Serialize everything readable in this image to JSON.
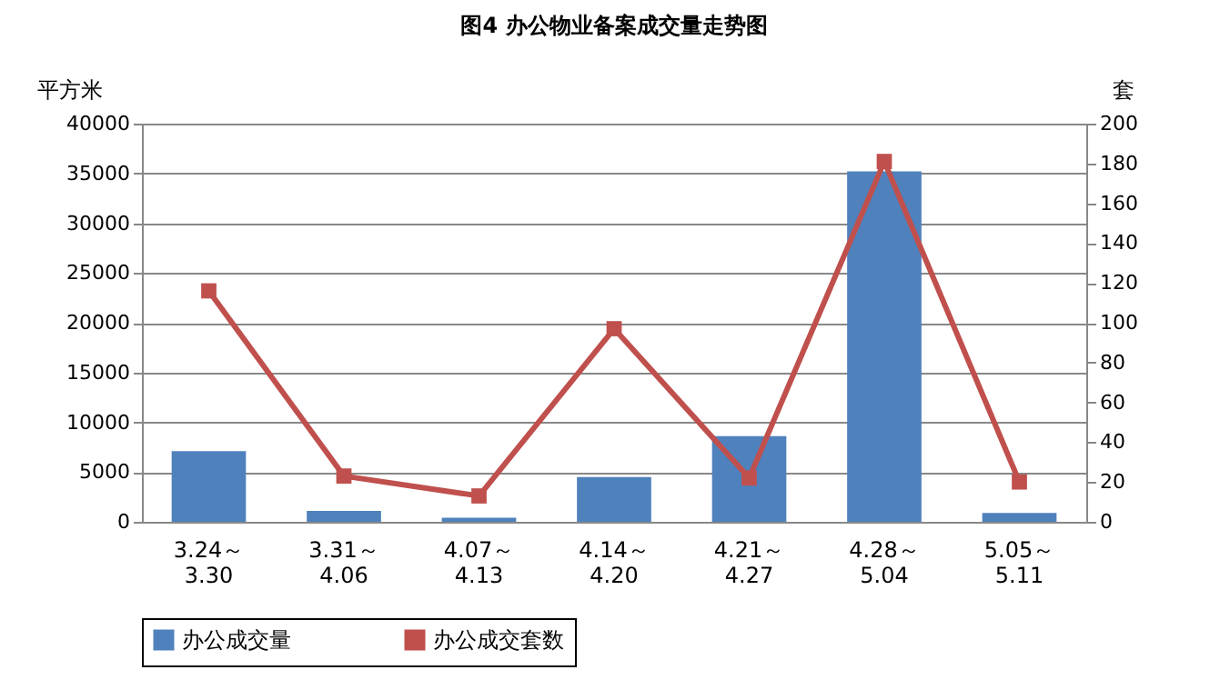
{
  "chart_data": {
    "type": "bar",
    "title": "图4   办公物业备案成交量走势图",
    "categories": [
      "3.24～\n3.30",
      "3.31～\n4.06",
      "4.07～\n4.13",
      "4.14～\n4.20",
      "4.21～\n4.27",
      "4.28～\n5.04",
      "5.05～\n5.11"
    ],
    "series": [
      {
        "name": "办公成交量",
        "color": "#4f81bd",
        "values": [
          7100,
          1100,
          400,
          4500,
          8600,
          35200,
          900
        ]
      },
      {
        "name": "办公成交套数",
        "color": "#c0504d",
        "type": "line",
        "axis": "y2",
        "marker": "square",
        "values": [
          116,
          23,
          13,
          97,
          22,
          181,
          20
        ]
      }
    ],
    "ylabel": "平方米",
    "y2label": "套",
    "ylim": [
      0,
      40000
    ],
    "yticks": [
      0,
      5000,
      10000,
      15000,
      20000,
      25000,
      30000,
      35000,
      40000
    ],
    "y2lim": [
      0,
      200
    ],
    "y2ticks": [
      0,
      20,
      40,
      60,
      80,
      100,
      120,
      140,
      160,
      180,
      200
    ],
    "grid": "y",
    "legend": "bottom"
  }
}
